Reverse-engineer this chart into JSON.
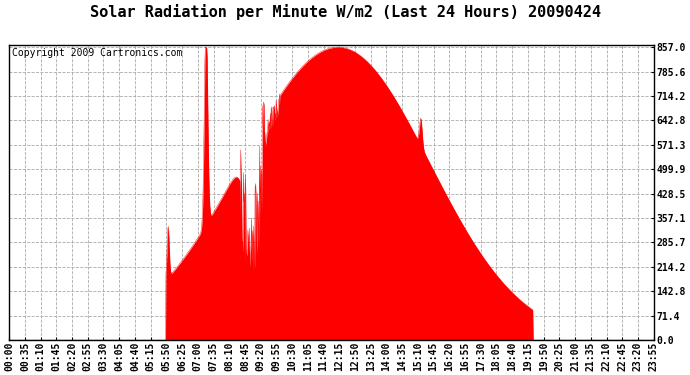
{
  "title": "Solar Radiation per Minute W/m2 (Last 24 Hours) 20090424",
  "copyright_text": "Copyright 2009 Cartronics.com",
  "fill_color": "#FF0000",
  "line_color": "#FF0000",
  "dashed_line_color": "#FF0000",
  "background_color": "#FFFFFF",
  "plot_bg_color": "#FFFFFF",
  "grid_color": "#AAAAAA",
  "yticks": [
    0.0,
    71.4,
    142.8,
    214.2,
    285.7,
    357.1,
    428.5,
    499.9,
    571.3,
    642.8,
    714.2,
    785.6,
    857.0
  ],
  "ymax": 857.0,
  "ymin": 0.0,
  "x_tick_labels": [
    "00:00",
    "00:35",
    "01:10",
    "01:45",
    "02:20",
    "02:55",
    "03:30",
    "04:05",
    "04:40",
    "05:15",
    "05:50",
    "06:25",
    "07:00",
    "07:35",
    "08:10",
    "08:45",
    "09:20",
    "09:55",
    "10:30",
    "11:05",
    "11:40",
    "12:15",
    "12:50",
    "13:25",
    "14:00",
    "14:35",
    "15:10",
    "15:45",
    "16:20",
    "16:55",
    "17:30",
    "18:05",
    "18:40",
    "19:15",
    "19:50",
    "20:25",
    "21:00",
    "21:35",
    "22:10",
    "22:45",
    "23:20",
    "23:55"
  ],
  "title_fontsize": 11,
  "copyright_fontsize": 7,
  "tick_fontsize": 7
}
